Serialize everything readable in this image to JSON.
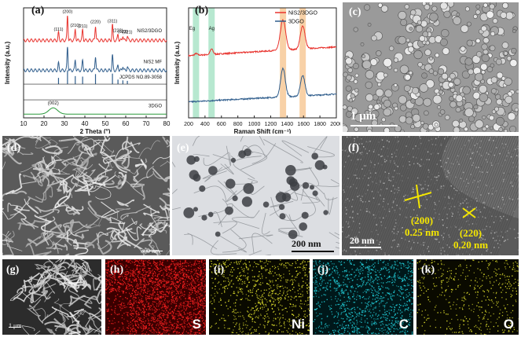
{
  "panels": {
    "a": {
      "label": "(a)",
      "chart_data": {
        "type": "line",
        "xlabel": "2 Theta (°)",
        "ylabel": "Intensity (a.u.)",
        "xlim": [
          10,
          80
        ],
        "xticks": [
          10,
          20,
          30,
          40,
          50,
          60,
          70,
          80
        ],
        "series": [
          {
            "name": "NiS2/3DGO",
            "color": "#e8332e",
            "offset": 3.1,
            "peaks": [
              [
                27.1,
                0.3
              ],
              [
                31.5,
                1.0
              ],
              [
                35.3,
                0.45
              ],
              [
                38.9,
                0.42
              ],
              [
                45.2,
                0.6
              ],
              [
                53.5,
                0.62
              ],
              [
                56.2,
                0.25
              ],
              [
                58.6,
                0.2
              ],
              [
                60.8,
                0.18
              ]
            ]
          },
          {
            "name": "NiS2 MF",
            "color": "#2f5d8c",
            "offset": 1.9,
            "peaks": [
              [
                27.1,
                0.28
              ],
              [
                31.5,
                0.95
              ],
              [
                35.3,
                0.42
              ],
              [
                38.9,
                0.4
              ],
              [
                45.2,
                0.58
              ],
              [
                53.5,
                0.6
              ],
              [
                56.2,
                0.22
              ],
              [
                58.6,
                0.18
              ],
              [
                60.8,
                0.16
              ]
            ]
          },
          {
            "name": "3DGO",
            "color": "#2a9a3c",
            "offset": 0.15,
            "peaks": [
              [
                24.5,
                0.25
              ]
            ]
          }
        ],
        "reference": {
          "name": "JCPDS NO.89-3058",
          "color": "#2f5d8c",
          "offset": 1.35,
          "x": [
            27.1,
            31.5,
            35.3,
            38.9,
            45.2,
            53.5,
            56.2,
            58.6,
            60.8
          ],
          "h": [
            0.25,
            0.55,
            0.32,
            0.3,
            0.4,
            0.42,
            0.18,
            0.15,
            0.13
          ]
        },
        "peak_labels": [
          {
            "x": 27.1,
            "text": "(111)"
          },
          {
            "x": 31.5,
            "text": "(200)"
          },
          {
            "x": 35.3,
            "text": "(210)"
          },
          {
            "x": 38.9,
            "text": "(211)"
          },
          {
            "x": 45.2,
            "text": "(220)"
          },
          {
            "x": 53.5,
            "text": "(311)"
          },
          {
            "x": 56.2,
            "text": "(222)"
          },
          {
            "x": 58.6,
            "text": "(023)"
          },
          {
            "x": 60.8,
            "text": "(321)"
          }
        ],
        "extra_label": {
          "x": 24.5,
          "text": "(002)"
        }
      }
    },
    "b": {
      "label": "(b)",
      "chart_data": {
        "type": "line",
        "xlabel": "Raman Shift (cm⁻¹)",
        "ylabel": "Intensity (a.u.)",
        "xlim": [
          200,
          2000
        ],
        "xticks": [
          200,
          400,
          600,
          800,
          1000,
          1200,
          1400,
          1600,
          1800,
          2000
        ],
        "legend": [
          "NiS2/3DGO",
          "3DGO"
        ],
        "legend_placement": "top-right",
        "series": [
          {
            "name": "NiS2/3DGO",
            "color": "#e8332e",
            "offset": 1.75,
            "base_slope": 0.25,
            "peaks": [
              [
                290,
                0.05,
                25
              ],
              [
                480,
                0.15,
                25
              ],
              [
                1350,
                0.85,
                45
              ],
              [
                1590,
                0.65,
                40
              ]
            ]
          },
          {
            "name": "3DGO",
            "color": "#2f5d8c",
            "offset": 0.45,
            "base_slope": 0.22,
            "peaks": [
              [
                1350,
                0.8,
                40
              ],
              [
                1590,
                0.58,
                38
              ]
            ]
          }
        ],
        "bands": [
          {
            "x": 290,
            "label": "Eg",
            "color": "#9fe0c0"
          },
          {
            "x": 480,
            "label": "Ag",
            "color": "#9fe0c0"
          },
          {
            "x": 1350,
            "label": "",
            "color": "#f5c28a"
          },
          {
            "x": 1590,
            "label": "",
            "color": "#f5c28a"
          }
        ]
      }
    },
    "c": {
      "label": "(c)",
      "scale": "1 μm"
    },
    "d": {
      "label": "(d)",
      "scale": "300 nm"
    },
    "e": {
      "label": "(e)",
      "scale": "200 nm"
    },
    "f": {
      "label": "(f)",
      "scale": "20 nm",
      "annotations": [
        {
          "plane": "(200)",
          "spacing": "0.25 nm"
        },
        {
          "plane": "(220)",
          "spacing": "0.20 nm"
        }
      ]
    },
    "g": {
      "label": "(g)",
      "scale": "1 μm"
    },
    "maps": [
      {
        "label": "(h)",
        "element": "S",
        "color": "#ff2222",
        "base": "#3a0000",
        "density": 0.55
      },
      {
        "label": "(i)",
        "element": "Ni",
        "color": "#e6e62e",
        "base": "#0a0a00",
        "density": 0.22
      },
      {
        "label": "(j)",
        "element": "C",
        "color": "#22d4e0",
        "base": "#00181a",
        "density": 0.3
      },
      {
        "label": "(k)",
        "element": "O",
        "color": "#e6e62e",
        "base": "#0a0a00",
        "density": 0.12
      }
    ]
  },
  "colors": {
    "red": "#e8332e",
    "blue": "#2f5d8c",
    "green": "#2a9a3c"
  }
}
